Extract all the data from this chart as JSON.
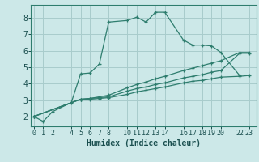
{
  "title": "",
  "xlabel": "Humidex (Indice chaleur)",
  "ylabel": "",
  "bg_color": "#cce8e8",
  "grid_color": "#a8cccc",
  "line_color": "#2e7d6e",
  "xticks": [
    0,
    1,
    2,
    4,
    5,
    6,
    7,
    8,
    10,
    11,
    12,
    13,
    14,
    16,
    17,
    18,
    19,
    20,
    22,
    23
  ],
  "yticks": [
    2,
    3,
    4,
    5,
    6,
    7,
    8
  ],
  "xlim": [
    -0.3,
    23.8
  ],
  "ylim": [
    1.4,
    8.8
  ],
  "lines": [
    {
      "x": [
        0,
        1,
        2,
        4,
        5,
        6,
        7,
        8,
        10,
        11,
        12,
        13,
        14,
        16,
        17,
        18,
        19,
        20,
        22
      ],
      "y": [
        2.0,
        1.7,
        2.3,
        2.85,
        4.6,
        4.65,
        5.2,
        7.75,
        7.85,
        8.05,
        7.75,
        8.35,
        8.35,
        6.65,
        6.35,
        6.35,
        6.3,
        5.9,
        4.5
      ]
    },
    {
      "x": [
        0,
        5,
        6,
        7,
        8,
        10,
        11,
        12,
        13,
        14,
        16,
        17,
        18,
        19,
        20,
        22,
        23
      ],
      "y": [
        2.0,
        3.05,
        3.05,
        3.1,
        3.15,
        3.35,
        3.5,
        3.6,
        3.7,
        3.8,
        4.05,
        4.15,
        4.2,
        4.3,
        4.4,
        4.45,
        4.5
      ]
    },
    {
      "x": [
        0,
        5,
        6,
        7,
        8,
        10,
        11,
        12,
        13,
        14,
        16,
        17,
        18,
        19,
        20,
        22,
        23
      ],
      "y": [
        2.0,
        3.05,
        3.1,
        3.15,
        3.2,
        3.55,
        3.7,
        3.8,
        3.95,
        4.05,
        4.35,
        4.45,
        4.55,
        4.7,
        4.8,
        5.85,
        5.85
      ]
    },
    {
      "x": [
        0,
        5,
        6,
        7,
        8,
        10,
        11,
        12,
        13,
        14,
        16,
        17,
        18,
        19,
        20,
        22,
        23
      ],
      "y": [
        2.0,
        3.05,
        3.1,
        3.2,
        3.3,
        3.75,
        3.95,
        4.1,
        4.3,
        4.45,
        4.8,
        4.95,
        5.1,
        5.25,
        5.4,
        5.9,
        5.9
      ]
    }
  ],
  "xlabel_fontsize": 7,
  "tick_fontsize": 6.5,
  "linewidth": 0.9,
  "markersize": 3.5
}
